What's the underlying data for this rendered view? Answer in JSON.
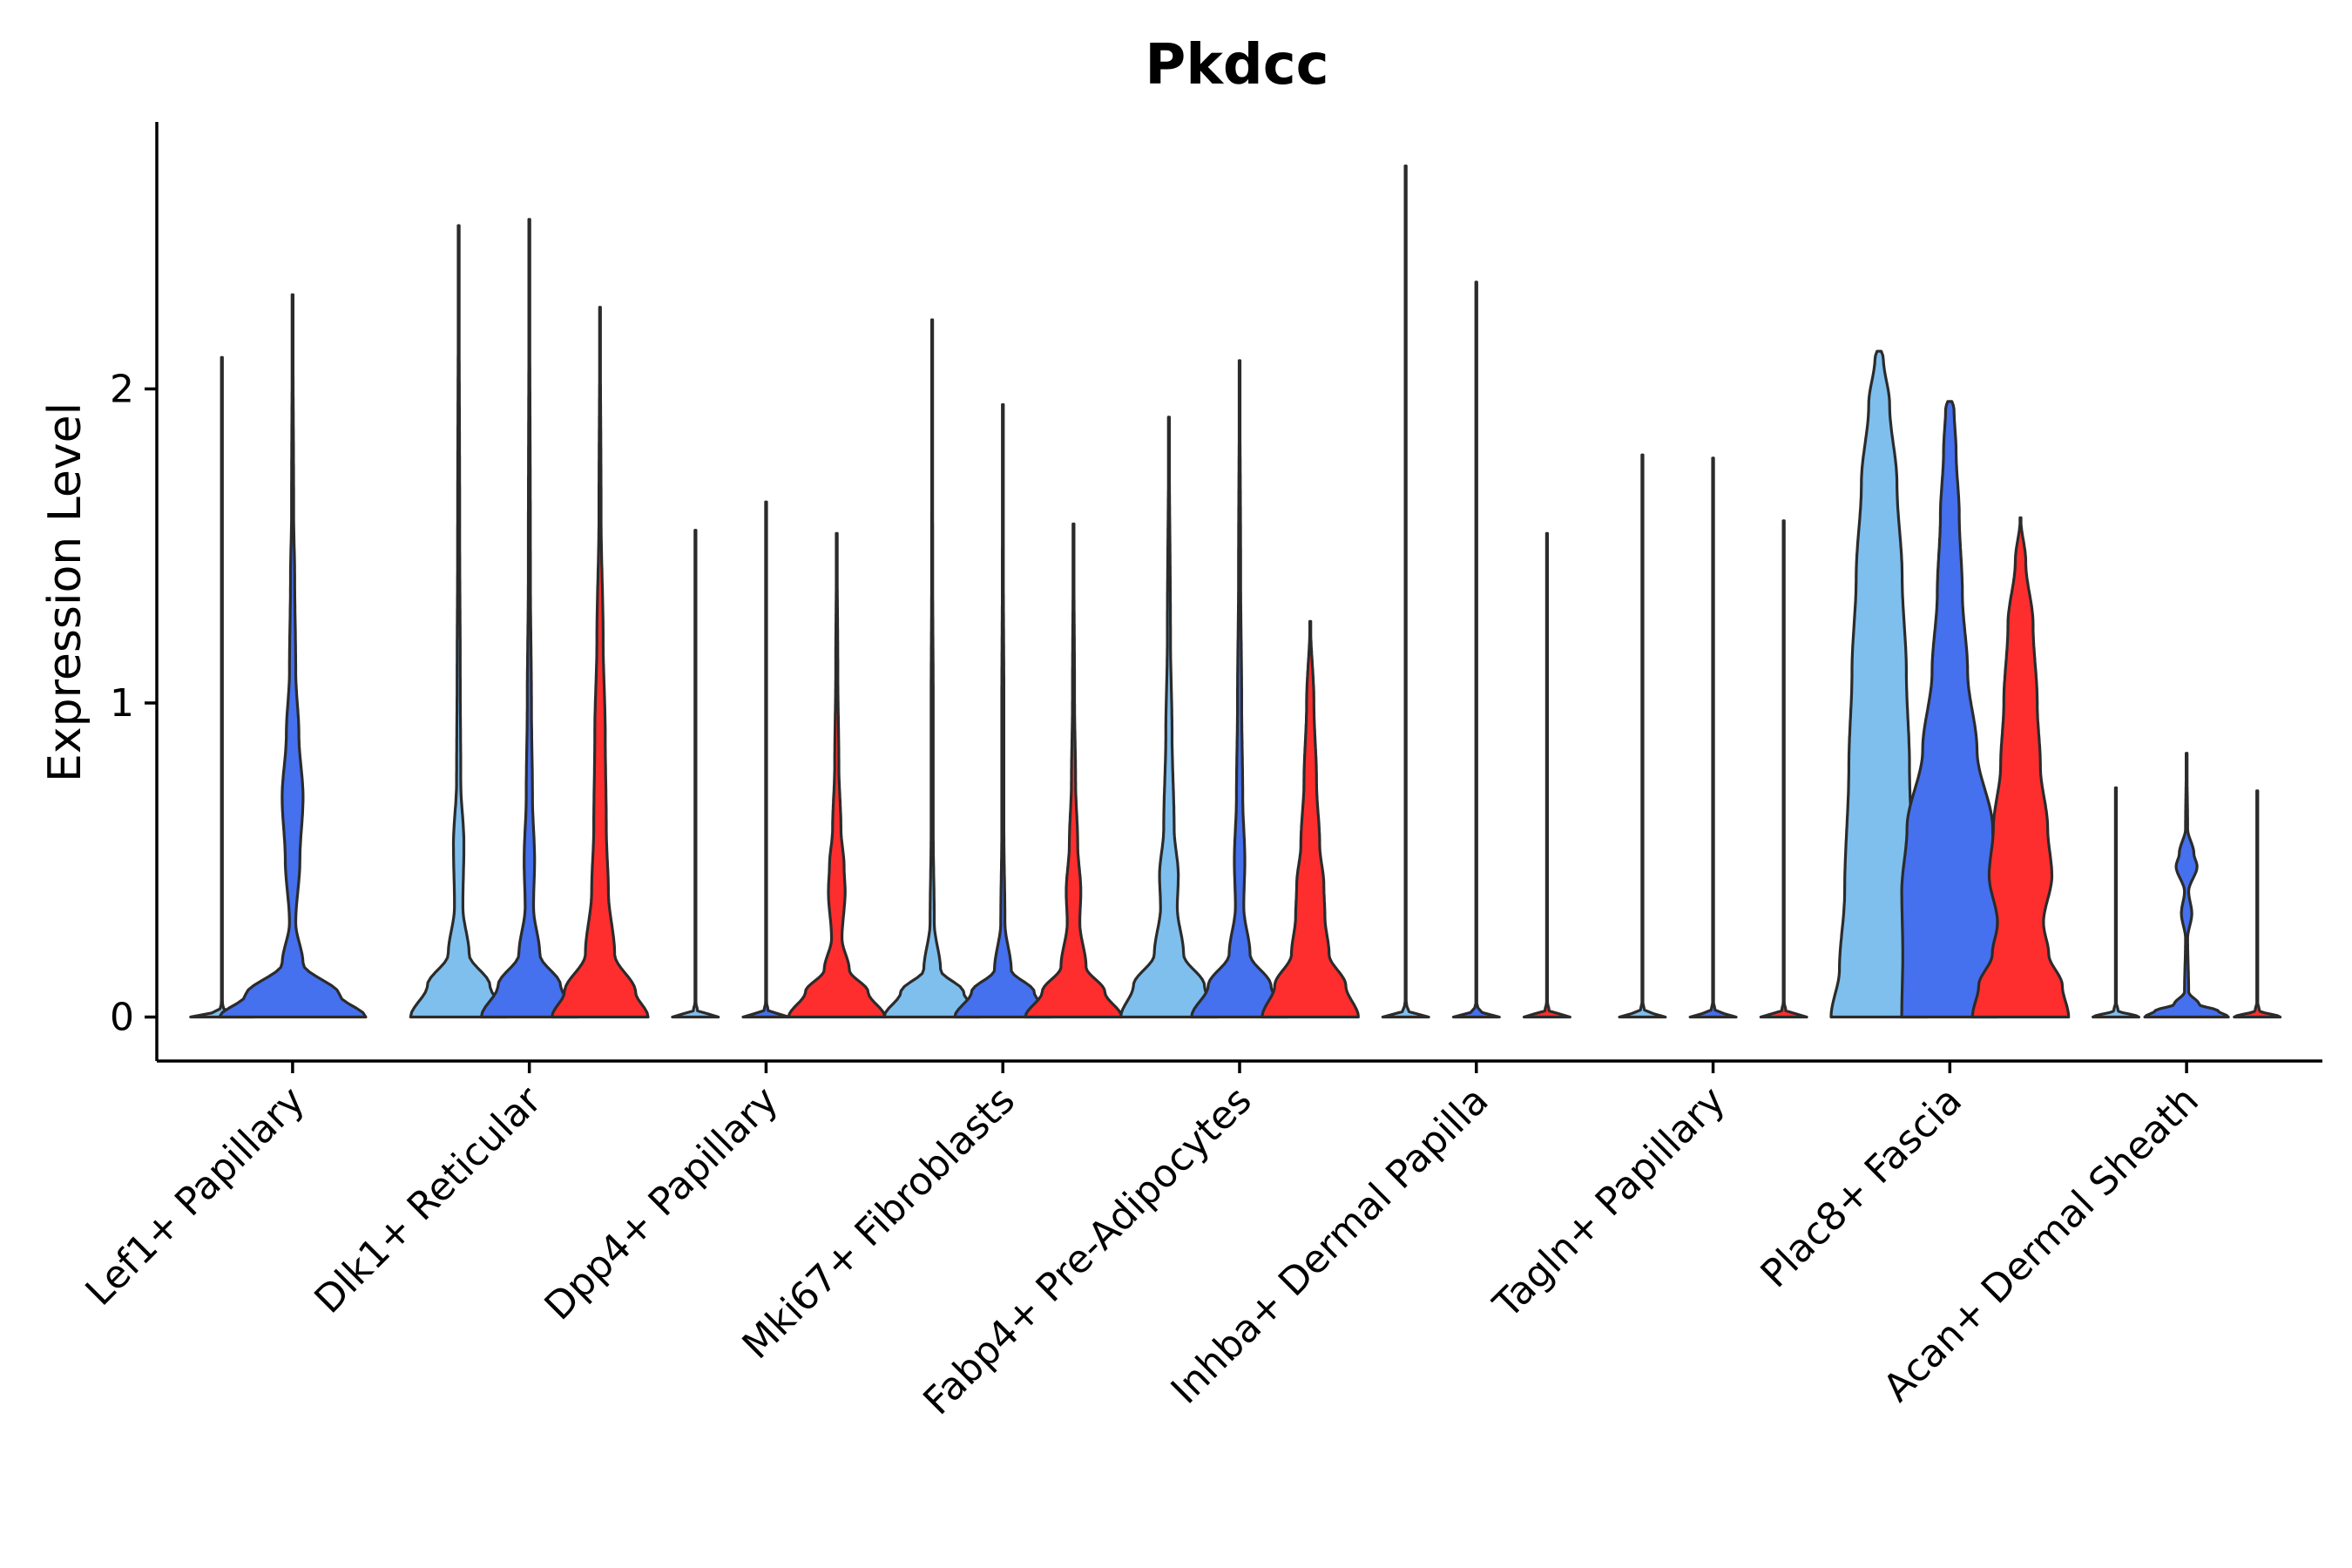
{
  "chart_data": {
    "type": "violin",
    "title": "Pkdcc",
    "xlabel": "",
    "ylabel": "Expression Level",
    "ylim": [
      -0.14,
      2.85
    ],
    "yticks": [
      0,
      1,
      2
    ],
    "categories": [
      "Lef1+ Papillary",
      "Dlk1+ Reticular",
      "Dpp4+ Papillary",
      "Mki67+ Fibroblasts",
      "Fabp4+ Pre-Adipocytes",
      "Inhba+ Dermal Papilla",
      "Tagln+ Papillary",
      "Plac8+ Fascia",
      "Acan+ Dermal Sheath"
    ],
    "series": [
      {
        "name": "group1",
        "color": "#7fbfee"
      },
      {
        "name": "group2",
        "color": "#4570ee"
      },
      {
        "name": "group3",
        "color": "#ff2e2e"
      }
    ],
    "violins": [
      {
        "category": 0,
        "series": 0,
        "max": 2.1,
        "profile": [
          [
            0,
            0.3
          ],
          [
            0.02,
            0.02
          ],
          [
            0.05,
            0.002
          ],
          [
            2.1,
            0.002
          ]
        ]
      },
      {
        "category": 0,
        "series": 1,
        "max": 2.3,
        "profile": [
          [
            0,
            0.7
          ],
          [
            0.07,
            0.45
          ],
          [
            0.17,
            0.1
          ],
          [
            0.3,
            0.03
          ],
          [
            0.5,
            0.07
          ],
          [
            0.7,
            0.1
          ],
          [
            0.9,
            0.06
          ],
          [
            1.1,
            0.03
          ],
          [
            1.4,
            0.02
          ],
          [
            1.6,
            0.01
          ],
          [
            2.3,
            0.002
          ]
        ]
      },
      {
        "category": 1,
        "series": 0,
        "max": 2.52,
        "profile": [
          [
            0,
            0.46
          ],
          [
            0.1,
            0.3
          ],
          [
            0.2,
            0.1
          ],
          [
            0.35,
            0.04
          ],
          [
            0.55,
            0.05
          ],
          [
            0.75,
            0.02
          ],
          [
            1.1,
            0.015
          ],
          [
            1.5,
            0.01
          ],
          [
            2.52,
            0.002
          ]
        ]
      },
      {
        "category": 1,
        "series": 1,
        "max": 2.54,
        "profile": [
          [
            0,
            0.46
          ],
          [
            0.1,
            0.3
          ],
          [
            0.2,
            0.1
          ],
          [
            0.35,
            0.04
          ],
          [
            0.5,
            0.05
          ],
          [
            0.7,
            0.03
          ],
          [
            1.0,
            0.02
          ],
          [
            1.4,
            0.01
          ],
          [
            2.54,
            0.002
          ]
        ]
      },
      {
        "category": 1,
        "series": 2,
        "max": 2.26,
        "profile": [
          [
            0,
            0.46
          ],
          [
            0.08,
            0.34
          ],
          [
            0.2,
            0.14
          ],
          [
            0.4,
            0.08
          ],
          [
            0.6,
            0.06
          ],
          [
            0.9,
            0.05
          ],
          [
            1.2,
            0.03
          ],
          [
            1.6,
            0.01
          ],
          [
            2.26,
            0.002
          ]
        ]
      },
      {
        "category": 2,
        "series": 0,
        "max": 1.55,
        "profile": [
          [
            0,
            0.22
          ],
          [
            0.02,
            0.02
          ],
          [
            0.05,
            0.002
          ],
          [
            1.55,
            0.002
          ]
        ]
      },
      {
        "category": 2,
        "series": 1,
        "max": 1.64,
        "profile": [
          [
            0,
            0.22
          ],
          [
            0.02,
            0.02
          ],
          [
            0.05,
            0.002
          ],
          [
            1.64,
            0.002
          ]
        ]
      },
      {
        "category": 2,
        "series": 2,
        "max": 1.54,
        "profile": [
          [
            0,
            0.46
          ],
          [
            0.08,
            0.3
          ],
          [
            0.15,
            0.12
          ],
          [
            0.25,
            0.05
          ],
          [
            0.4,
            0.08
          ],
          [
            0.48,
            0.07
          ],
          [
            0.6,
            0.04
          ],
          [
            0.8,
            0.02
          ],
          [
            1.1,
            0.01
          ],
          [
            1.54,
            0.002
          ]
        ]
      },
      {
        "category": 3,
        "series": 0,
        "max": 2.22,
        "profile": [
          [
            0,
            0.46
          ],
          [
            0.08,
            0.3
          ],
          [
            0.15,
            0.08
          ],
          [
            0.3,
            0.02
          ],
          [
            0.6,
            0.01
          ],
          [
            1.0,
            0.01
          ],
          [
            1.4,
            0.005
          ],
          [
            2.22,
            0.002
          ]
        ]
      },
      {
        "category": 3,
        "series": 1,
        "max": 1.95,
        "profile": [
          [
            0,
            0.46
          ],
          [
            0.08,
            0.3
          ],
          [
            0.15,
            0.08
          ],
          [
            0.3,
            0.02
          ],
          [
            0.6,
            0.01
          ],
          [
            1.0,
            0.01
          ],
          [
            1.4,
            0.005
          ],
          [
            1.95,
            0.002
          ]
        ]
      },
      {
        "category": 3,
        "series": 2,
        "max": 1.57,
        "profile": [
          [
            0,
            0.46
          ],
          [
            0.08,
            0.3
          ],
          [
            0.16,
            0.12
          ],
          [
            0.3,
            0.06
          ],
          [
            0.4,
            0.07
          ],
          [
            0.55,
            0.04
          ],
          [
            0.75,
            0.02
          ],
          [
            1.0,
            0.01
          ],
          [
            1.57,
            0.002
          ]
        ]
      },
      {
        "category": 4,
        "series": 0,
        "max": 1.91,
        "profile": [
          [
            0,
            0.46
          ],
          [
            0.1,
            0.34
          ],
          [
            0.2,
            0.14
          ],
          [
            0.35,
            0.08
          ],
          [
            0.45,
            0.09
          ],
          [
            0.6,
            0.05
          ],
          [
            0.9,
            0.03
          ],
          [
            1.2,
            0.015
          ],
          [
            1.91,
            0.002
          ]
        ]
      },
      {
        "category": 4,
        "series": 1,
        "max": 2.09,
        "profile": [
          [
            0,
            0.46
          ],
          [
            0.1,
            0.3
          ],
          [
            0.2,
            0.1
          ],
          [
            0.35,
            0.04
          ],
          [
            0.5,
            0.05
          ],
          [
            0.7,
            0.03
          ],
          [
            1.0,
            0.02
          ],
          [
            1.4,
            0.01
          ],
          [
            2.09,
            0.002
          ]
        ]
      },
      {
        "category": 4,
        "series": 2,
        "max": 1.26,
        "profile": [
          [
            0,
            0.46
          ],
          [
            0.1,
            0.34
          ],
          [
            0.2,
            0.18
          ],
          [
            0.32,
            0.14
          ],
          [
            0.42,
            0.13
          ],
          [
            0.55,
            0.09
          ],
          [
            0.75,
            0.06
          ],
          [
            1.0,
            0.035
          ],
          [
            1.26,
            0.002
          ]
        ]
      },
      {
        "category": 5,
        "series": 0,
        "max": 2.71,
        "profile": [
          [
            0,
            0.22
          ],
          [
            0.02,
            0.02
          ],
          [
            0.05,
            0.002
          ],
          [
            2.71,
            0.002
          ]
        ]
      },
      {
        "category": 5,
        "series": 1,
        "max": 2.34,
        "profile": [
          [
            0,
            0.22
          ],
          [
            0.02,
            0.02
          ],
          [
            0.05,
            0.002
          ],
          [
            2.34,
            0.002
          ]
        ]
      },
      {
        "category": 5,
        "series": 2,
        "max": 1.54,
        "profile": [
          [
            0,
            0.22
          ],
          [
            0.02,
            0.02
          ],
          [
            0.05,
            0.002
          ],
          [
            1.54,
            0.002
          ]
        ]
      },
      {
        "category": 6,
        "series": 0,
        "max": 1.79,
        "profile": [
          [
            0,
            0.22
          ],
          [
            0.02,
            0.02
          ],
          [
            0.05,
            0.002
          ],
          [
            1.79,
            0.002
          ]
        ]
      },
      {
        "category": 6,
        "series": 1,
        "max": 1.78,
        "profile": [
          [
            0,
            0.22
          ],
          [
            0.02,
            0.02
          ],
          [
            0.05,
            0.002
          ],
          [
            1.78,
            0.002
          ]
        ]
      },
      {
        "category": 6,
        "series": 2,
        "max": 1.58,
        "profile": [
          [
            0,
            0.22
          ],
          [
            0.02,
            0.02
          ],
          [
            0.05,
            0.002
          ],
          [
            1.58,
            0.002
          ]
        ]
      },
      {
        "category": 7,
        "series": 0,
        "max": 2.12,
        "profile": [
          [
            0,
            0.46
          ],
          [
            0.15,
            0.38
          ],
          [
            0.4,
            0.33
          ],
          [
            0.8,
            0.29
          ],
          [
            1.1,
            0.26
          ],
          [
            1.4,
            0.22
          ],
          [
            1.7,
            0.17
          ],
          [
            1.95,
            0.1
          ],
          [
            2.1,
            0.04
          ],
          [
            2.12,
            0.02
          ]
        ]
      },
      {
        "category": 7,
        "series": 1,
        "max": 1.96,
        "profile": [
          [
            0,
            0.46
          ],
          [
            0.2,
            0.45
          ],
          [
            0.4,
            0.46
          ],
          [
            0.6,
            0.41
          ],
          [
            0.85,
            0.26
          ],
          [
            1.1,
            0.17
          ],
          [
            1.35,
            0.12
          ],
          [
            1.6,
            0.09
          ],
          [
            1.8,
            0.06
          ],
          [
            1.94,
            0.04
          ],
          [
            1.96,
            0.02
          ]
        ]
      },
      {
        "category": 7,
        "series": 2,
        "max": 1.59,
        "profile": [
          [
            0,
            0.46
          ],
          [
            0.1,
            0.4
          ],
          [
            0.2,
            0.27
          ],
          [
            0.3,
            0.22
          ],
          [
            0.45,
            0.3
          ],
          [
            0.6,
            0.26
          ],
          [
            0.8,
            0.19
          ],
          [
            1.0,
            0.16
          ],
          [
            1.25,
            0.12
          ],
          [
            1.45,
            0.05
          ],
          [
            1.59,
            0.002
          ]
        ]
      },
      {
        "category": 8,
        "series": 0,
        "max": 0.73,
        "profile": [
          [
            0,
            0.22
          ],
          [
            0.02,
            0.02
          ],
          [
            0.05,
            0.002
          ],
          [
            0.73,
            0.002
          ]
        ]
      },
      {
        "category": 8,
        "series": 1,
        "max": 0.84,
        "profile": [
          [
            0,
            0.4
          ],
          [
            0.02,
            0.3
          ],
          [
            0.04,
            0.12
          ],
          [
            0.08,
            0.02
          ],
          [
            0.25,
            0.01
          ],
          [
            0.33,
            0.05
          ],
          [
            0.4,
            0.02
          ],
          [
            0.48,
            0.1
          ],
          [
            0.52,
            0.07
          ],
          [
            0.6,
            0.01
          ],
          [
            0.84,
            0.002
          ]
        ]
      },
      {
        "category": 8,
        "series": 2,
        "max": 0.72,
        "profile": [
          [
            0,
            0.22
          ],
          [
            0.02,
            0.02
          ],
          [
            0.05,
            0.002
          ],
          [
            0.72,
            0.002
          ]
        ]
      }
    ]
  }
}
